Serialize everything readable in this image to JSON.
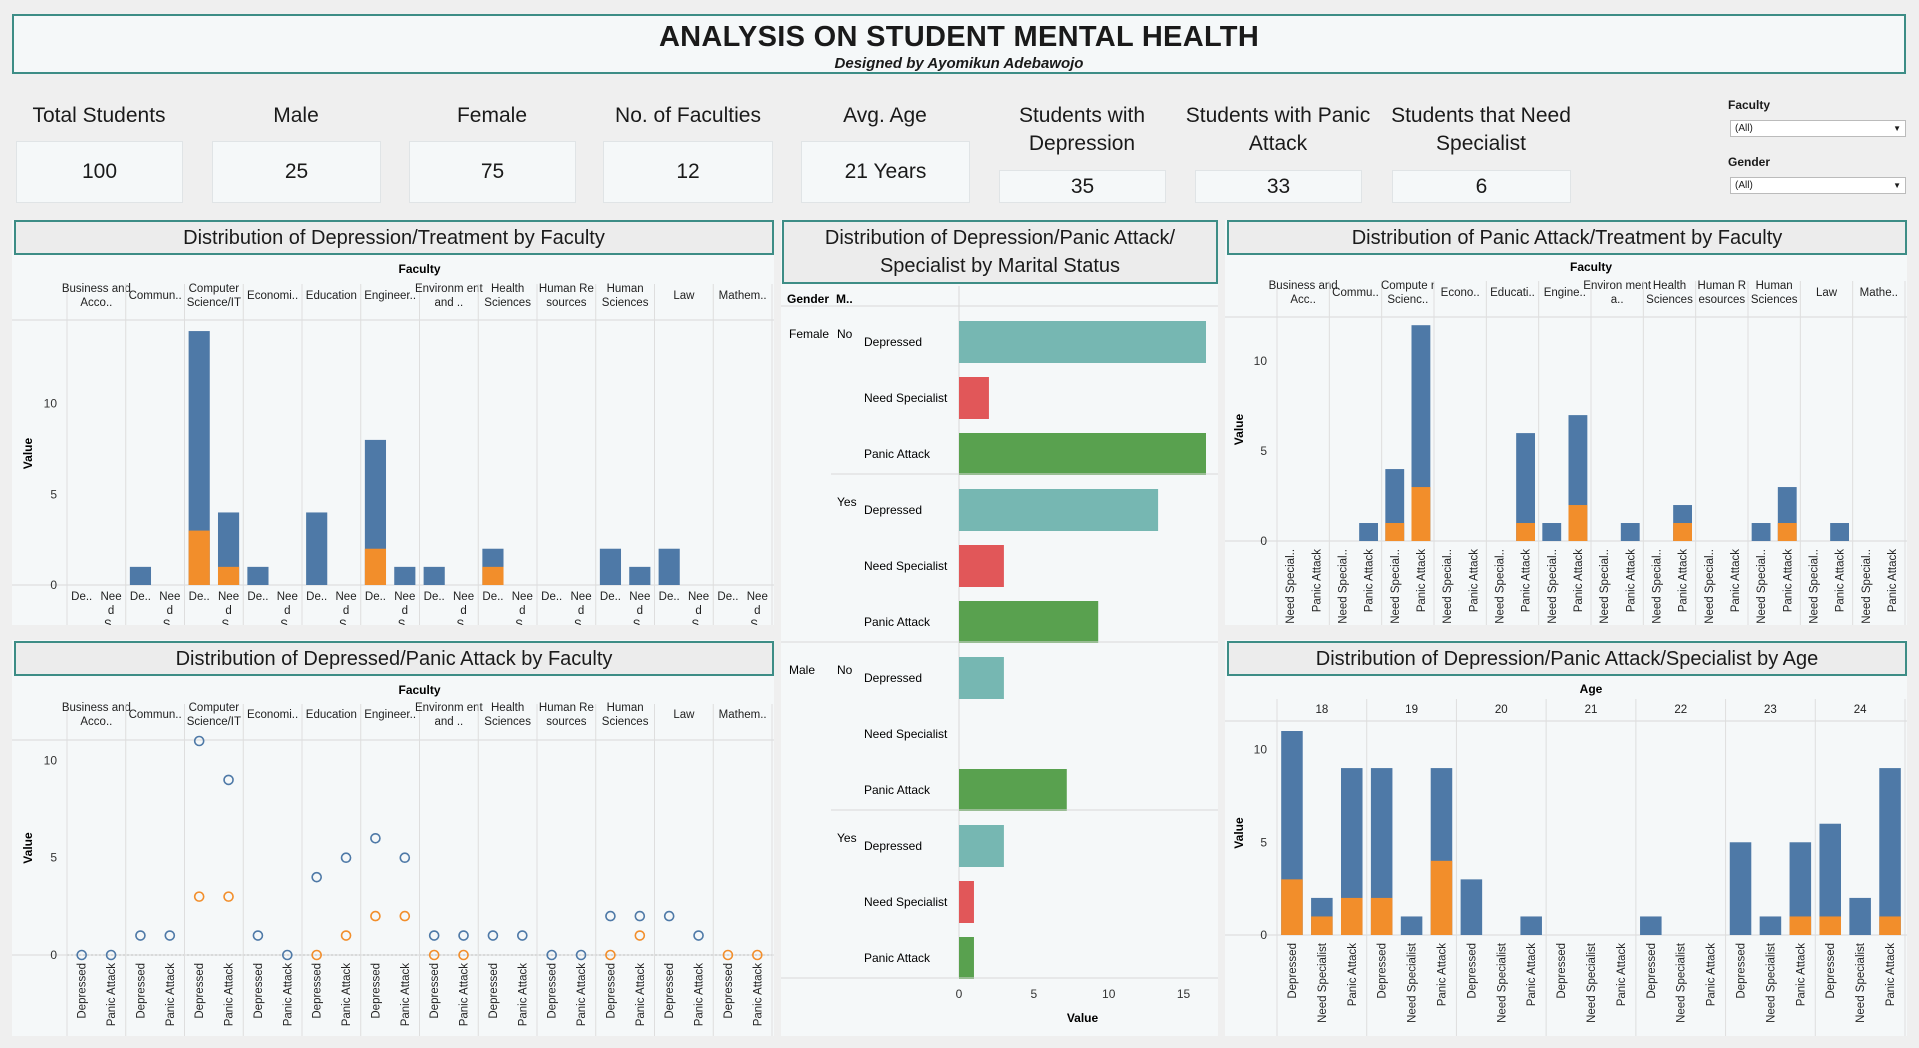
{
  "header": {
    "title": "ANALYSIS ON STUDENT MENTAL HEALTH",
    "subtitle": "Designed by Ayomikun Adebawojo"
  },
  "kpis": [
    {
      "label": "Total Students",
      "value": "100"
    },
    {
      "label": "Male",
      "value": "25"
    },
    {
      "label": "Female",
      "value": "75"
    },
    {
      "label": "No. of Faculties",
      "value": "12"
    },
    {
      "label": "Avg. Age",
      "value": "21 Years"
    },
    {
      "label": "Students with Depression",
      "value": "35"
    },
    {
      "label": "Students with Panic Attack",
      "value": "33"
    },
    {
      "label": "Students that Need Specialist",
      "value": "6"
    }
  ],
  "filters": {
    "faculty": {
      "label": "Faculty",
      "value": "(All)"
    },
    "gender": {
      "label": "Gender",
      "value": "(All)"
    }
  },
  "panels": {
    "dep_treatment": "Distribution of Depression/Treatment by Faculty",
    "marital": "Distribution of Depression/Panic Attack/ Specialist by Marital Status",
    "panic_treatment": "Distribution of Panic Attack/Treatment by Faculty",
    "dep_panic": "Distribution of Depressed/Panic Attack by Faculty",
    "age": "Distribution of Depression/Panic Attack/Specialist by Age"
  },
  "colors": {
    "blue": "#4e79a7",
    "orange": "#f28e2b",
    "teal": "#76b7b2",
    "red": "#e15759",
    "green": "#59a14f"
  },
  "chart_data": [
    {
      "id": "dep_treatment",
      "type": "bar",
      "stacked": true,
      "column_header": "Faculty",
      "ylabel": "Value",
      "yticks": [
        0,
        5,
        10
      ],
      "ylim": [
        0,
        14.5
      ],
      "faculties": [
        "Business and Acco..",
        "Commun..",
        "Computer Science/IT",
        "Economi..",
        "Education",
        "Engineer..",
        "Environm ent and ..",
        "Health Sciences",
        "Human Re sources",
        "Human Sciences",
        "Law",
        "Mathem.."
      ],
      "sub_labels": [
        "De..",
        "Nee d S.."
      ],
      "series": [
        {
          "name": "blue",
          "values": [
            [
              0,
              0
            ],
            [
              1,
              0
            ],
            [
              14,
              4
            ],
            [
              1,
              0
            ],
            [
              4,
              0
            ],
            [
              8,
              1
            ],
            [
              1,
              0
            ],
            [
              2,
              0
            ],
            [
              0,
              0
            ],
            [
              2,
              1
            ],
            [
              2,
              0
            ],
            [
              0,
              0
            ]
          ]
        },
        {
          "name": "orange",
          "values": [
            [
              0,
              0
            ],
            [
              0,
              0
            ],
            [
              3,
              1
            ],
            [
              0,
              0
            ],
            [
              0,
              0
            ],
            [
              2,
              0
            ],
            [
              0,
              0
            ],
            [
              1,
              0
            ],
            [
              0,
              0
            ],
            [
              0,
              0
            ],
            [
              0,
              0
            ],
            [
              0,
              0
            ]
          ]
        }
      ]
    },
    {
      "id": "marital",
      "type": "bar",
      "orientation": "horizontal",
      "header_gender": "Gender",
      "header_marital": "M..",
      "xlabel": "Value",
      "xticks": [
        0,
        5,
        10,
        15
      ],
      "xlim": [
        0,
        16.5
      ],
      "groups": [
        {
          "gender": "Female",
          "marital": "No",
          "rows": [
            {
              "label": "Depressed",
              "value": 16.5,
              "color": "teal"
            },
            {
              "label": "Need Specialist",
              "value": 2,
              "color": "red"
            },
            {
              "label": "Panic Attack",
              "value": 16.5,
              "color": "green"
            }
          ]
        },
        {
          "gender": "",
          "marital": "Yes",
          "rows": [
            {
              "label": "Depressed",
              "value": 13.3,
              "color": "teal"
            },
            {
              "label": "Need Specialist",
              "value": 3,
              "color": "red"
            },
            {
              "label": "Panic Attack",
              "value": 9.3,
              "color": "green"
            }
          ]
        },
        {
          "gender": "Male",
          "marital": "No",
          "rows": [
            {
              "label": "Depressed",
              "value": 3,
              "color": "teal"
            },
            {
              "label": "Need Specialist",
              "value": 0,
              "color": "red"
            },
            {
              "label": "Panic Attack",
              "value": 7.2,
              "color": "green"
            }
          ]
        },
        {
          "gender": "",
          "marital": "Yes",
          "rows": [
            {
              "label": "Depressed",
              "value": 3,
              "color": "teal"
            },
            {
              "label": "Need Specialist",
              "value": 1,
              "color": "red"
            },
            {
              "label": "Panic Attack",
              "value": 1,
              "color": "green"
            }
          ]
        }
      ]
    },
    {
      "id": "panic_treatment",
      "type": "bar",
      "stacked": true,
      "column_header": "Faculty",
      "ylabel": "Value",
      "yticks": [
        0,
        5,
        10
      ],
      "ylim": [
        0,
        12.4
      ],
      "faculties": [
        "Business and Acc..",
        "Commu..",
        "Compute r Scienc..",
        "Econo..",
        "Educati..",
        "Engine..",
        "Environ ment a..",
        "Health Sciences",
        "Human R esources",
        "Human Sciences",
        "Law",
        "Mathe.."
      ],
      "sub_labels": [
        "Need Special..",
        "Panic Attack"
      ],
      "series": [
        {
          "name": "blue",
          "values": [
            [
              0,
              0
            ],
            [
              0,
              1
            ],
            [
              4,
              12
            ],
            [
              0,
              0
            ],
            [
              0,
              6
            ],
            [
              1,
              7
            ],
            [
              0,
              1
            ],
            [
              0,
              2
            ],
            [
              0,
              0
            ],
            [
              1,
              3
            ],
            [
              0,
              1
            ],
            [
              0,
              0
            ]
          ]
        },
        {
          "name": "orange",
          "values": [
            [
              0,
              0
            ],
            [
              0,
              0
            ],
            [
              1,
              3
            ],
            [
              0,
              0
            ],
            [
              0,
              1
            ],
            [
              0,
              2
            ],
            [
              0,
              0
            ],
            [
              0,
              1
            ],
            [
              0,
              0
            ],
            [
              0,
              1
            ],
            [
              0,
              0
            ],
            [
              0,
              0
            ]
          ]
        }
      ]
    },
    {
      "id": "dep_panic",
      "type": "scatter",
      "column_header": "Faculty",
      "ylabel": "Value",
      "yticks": [
        0,
        5,
        10
      ],
      "ylim": [
        0,
        11
      ],
      "faculties": [
        "Business and Acco..",
        "Commun..",
        "Computer Science/IT",
        "Economi..",
        "Education",
        "Engineer..",
        "Environm ent and ..",
        "Health Sciences",
        "Human Re sources",
        "Human Sciences",
        "Law",
        "Mathem.."
      ],
      "sub_labels": [
        "Depressed",
        "Panic Attack"
      ],
      "series": [
        {
          "name": "blue",
          "values": [
            [
              0,
              0
            ],
            [
              1,
              1
            ],
            [
              11,
              9
            ],
            [
              1,
              0
            ],
            [
              4,
              5
            ],
            [
              6,
              5
            ],
            [
              1,
              1
            ],
            [
              1,
              1
            ],
            [
              0,
              0
            ],
            [
              2,
              2
            ],
            [
              2,
              1
            ],
            [
              null,
              null
            ]
          ]
        },
        {
          "name": "orange",
          "values": [
            [
              null,
              null
            ],
            [
              null,
              null
            ],
            [
              3,
              3
            ],
            [
              null,
              null
            ],
            [
              0,
              1
            ],
            [
              2,
              2
            ],
            [
              0,
              0
            ],
            [
              null,
              null
            ],
            [
              null,
              null
            ],
            [
              0,
              1
            ],
            [
              null,
              null
            ],
            [
              0,
              0
            ]
          ]
        }
      ]
    },
    {
      "id": "age",
      "type": "bar",
      "stacked": true,
      "column_header": "Age",
      "ylabel": "Value",
      "yticks": [
        0,
        5,
        10
      ],
      "ylim": [
        0,
        11
      ],
      "ages": [
        "18",
        "19",
        "20",
        "21",
        "22",
        "23",
        "24"
      ],
      "sub_labels": [
        "Depressed",
        "Need Specialist",
        "Panic Attack"
      ],
      "series": [
        {
          "name": "blue",
          "values": [
            [
              11,
              2,
              9
            ],
            [
              9,
              1,
              9
            ],
            [
              3,
              0,
              1
            ],
            [
              0,
              0,
              0
            ],
            [
              1,
              0,
              0
            ],
            [
              5,
              1,
              5
            ],
            [
              6,
              2,
              9
            ]
          ]
        },
        {
          "name": "orange",
          "values": [
            [
              3,
              1,
              2
            ],
            [
              2,
              0,
              4
            ],
            [
              0,
              0,
              0
            ],
            [
              0,
              0,
              0
            ],
            [
              0,
              0,
              0
            ],
            [
              0,
              0,
              1
            ],
            [
              1,
              0,
              1
            ]
          ]
        }
      ]
    }
  ]
}
